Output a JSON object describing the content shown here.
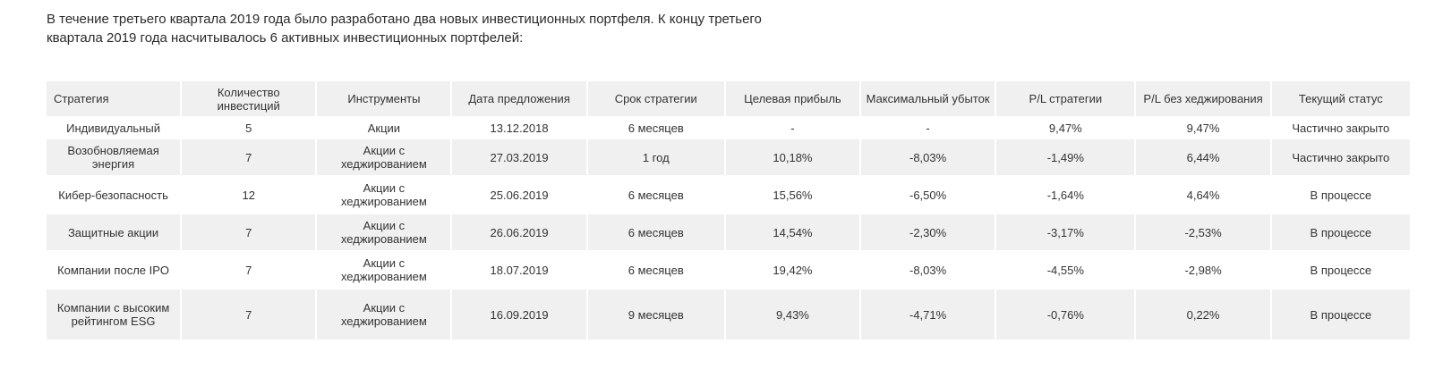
{
  "intro": {
    "line1": "В течение третьего квартала 2019 года было разработано два новых инвестиционных портфеля. К концу третьего",
    "line2": "квартала 2019 года насчитывалось 6 активных инвестиционных портфелей:"
  },
  "table": {
    "headers": [
      "Стратегия",
      "Количество инвестиций",
      "Инструменты",
      "Дата предложения",
      "Срок стратегии",
      "Целевая прибыль",
      "Максимальный убыток",
      "P/L стратегии",
      "P/L без хеджирования",
      "Текущий статус"
    ],
    "rows": [
      [
        "Индивидуальный",
        "5",
        "Акции",
        "13.12.2018",
        "6 месяцев",
        "-",
        "-",
        "9,47%",
        "9,47%",
        "Частично закрыто"
      ],
      [
        "Возобновляемая энергия",
        "7",
        "Акции с хеджированием",
        "27.03.2019",
        "1 год",
        "10,18%",
        "-8,03%",
        "-1,49%",
        "6,44%",
        "Частично закрыто"
      ],
      [
        "Кибер-безопасность",
        "12",
        "Акции с хеджированием",
        "25.06.2019",
        "6 месяцев",
        "15,56%",
        "-6,50%",
        "-1,64%",
        "4,64%",
        "В процессе"
      ],
      [
        "Защитные акции",
        "7",
        "Акции с хеджированием",
        "26.06.2019",
        "6 месяцев",
        "14,54%",
        "-2,30%",
        "-3,17%",
        "-2,53%",
        "В процессе"
      ],
      [
        "Компании после IPO",
        "7",
        "Акции с хеджированием",
        "18.07.2019",
        "6 месяцев",
        "19,42%",
        "-8,03%",
        "-4,55%",
        "-2,98%",
        "В процессе"
      ],
      [
        "Компании с высоким рейтингом ESG",
        "7",
        "Акции с хеджированием",
        "16.09.2019",
        "9 месяцев",
        "9,43%",
        "-4,71%",
        "-0,76%",
        "0,22%",
        "В процессе"
      ]
    ]
  }
}
